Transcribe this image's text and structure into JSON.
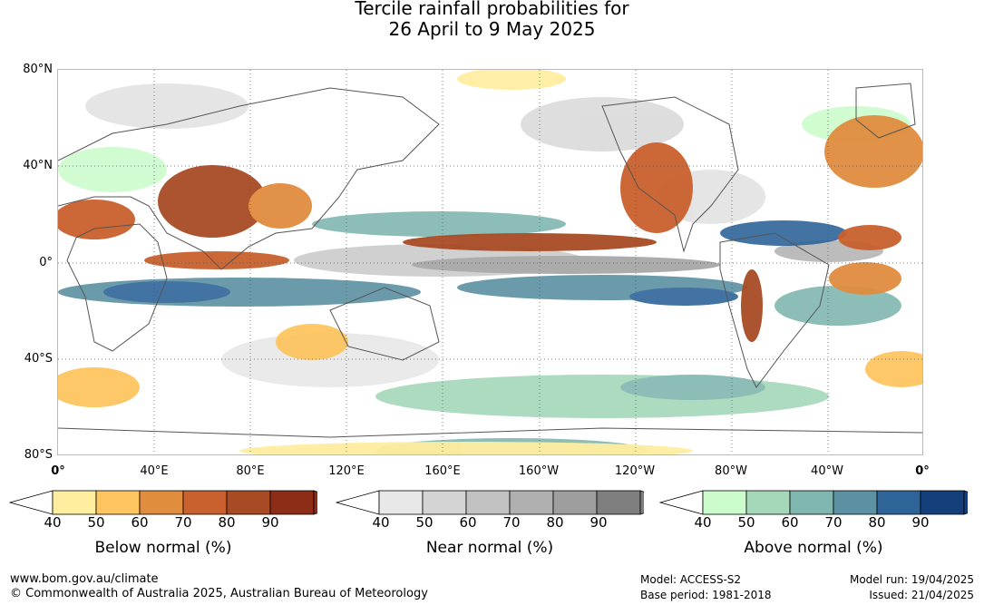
{
  "title": {
    "line1": "Tercile rainfall probabilities for",
    "line2": "26 April to 9 May 2025"
  },
  "axes": {
    "lat_labels": [
      "80°N",
      "40°N",
      "0°",
      "40°S",
      "80°S"
    ],
    "lon_labels": [
      "0°",
      "40°E",
      "80°E",
      "120°E",
      "160°E",
      "160°W",
      "120°W",
      "80°W",
      "40°W",
      "0°"
    ]
  },
  "legend": {
    "below": {
      "title": "Below normal (%)",
      "ticks": [
        "40",
        "50",
        "60",
        "70",
        "80",
        "90"
      ],
      "colors": [
        "#ffeda0",
        "#fec560",
        "#e08d3f",
        "#c9602d",
        "#a84a24",
        "#8c2d17"
      ]
    },
    "near": {
      "title": "Near normal (%)",
      "ticks": [
        "40",
        "50",
        "60",
        "70",
        "80",
        "90"
      ],
      "colors": [
        "#e8e8e8",
        "#d4d4d4",
        "#c2c2c2",
        "#b0b0b0",
        "#9e9e9e",
        "#7f7f7f"
      ]
    },
    "above": {
      "title": "Above normal (%)",
      "ticks": [
        "40",
        "50",
        "60",
        "70",
        "80",
        "90"
      ],
      "colors": [
        "#ccfccc",
        "#a5d8b9",
        "#80b6b0",
        "#5b91a2",
        "#2f6498",
        "#143f7a"
      ]
    }
  },
  "footer": {
    "website": "www.bom.gov.au/climate",
    "copyright": "© Commonwealth of Australia 2025, Australian Bureau of Meteorology",
    "model": "Model: ACCESS-S2",
    "base_period": "Base period: 1981-2018",
    "model_run": "Model run: 19/04/2025",
    "issued": "Issued: 21/04/2025"
  }
}
